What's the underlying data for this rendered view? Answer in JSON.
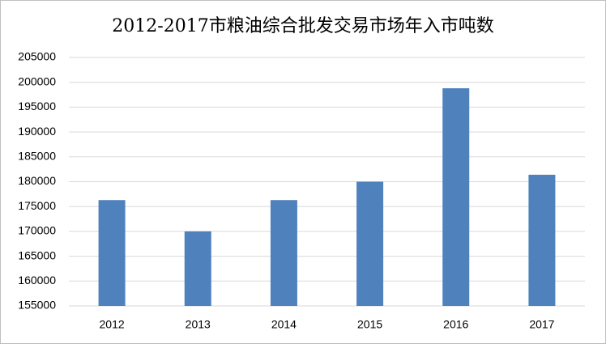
{
  "chart_data": {
    "type": "bar",
    "title": "2012-2017市粮油综合批发交易市场年入市吨数",
    "categories": [
      "2012",
      "2013",
      "2014",
      "2015",
      "2016",
      "2017"
    ],
    "values": [
      176300,
      170000,
      176300,
      180000,
      198800,
      181400
    ],
    "color": "#4f81bd",
    "ylim": [
      155000,
      205000
    ],
    "yticks": [
      155000,
      160000,
      165000,
      170000,
      175000,
      180000,
      185000,
      190000,
      195000,
      200000,
      205000
    ],
    "grid": true
  }
}
